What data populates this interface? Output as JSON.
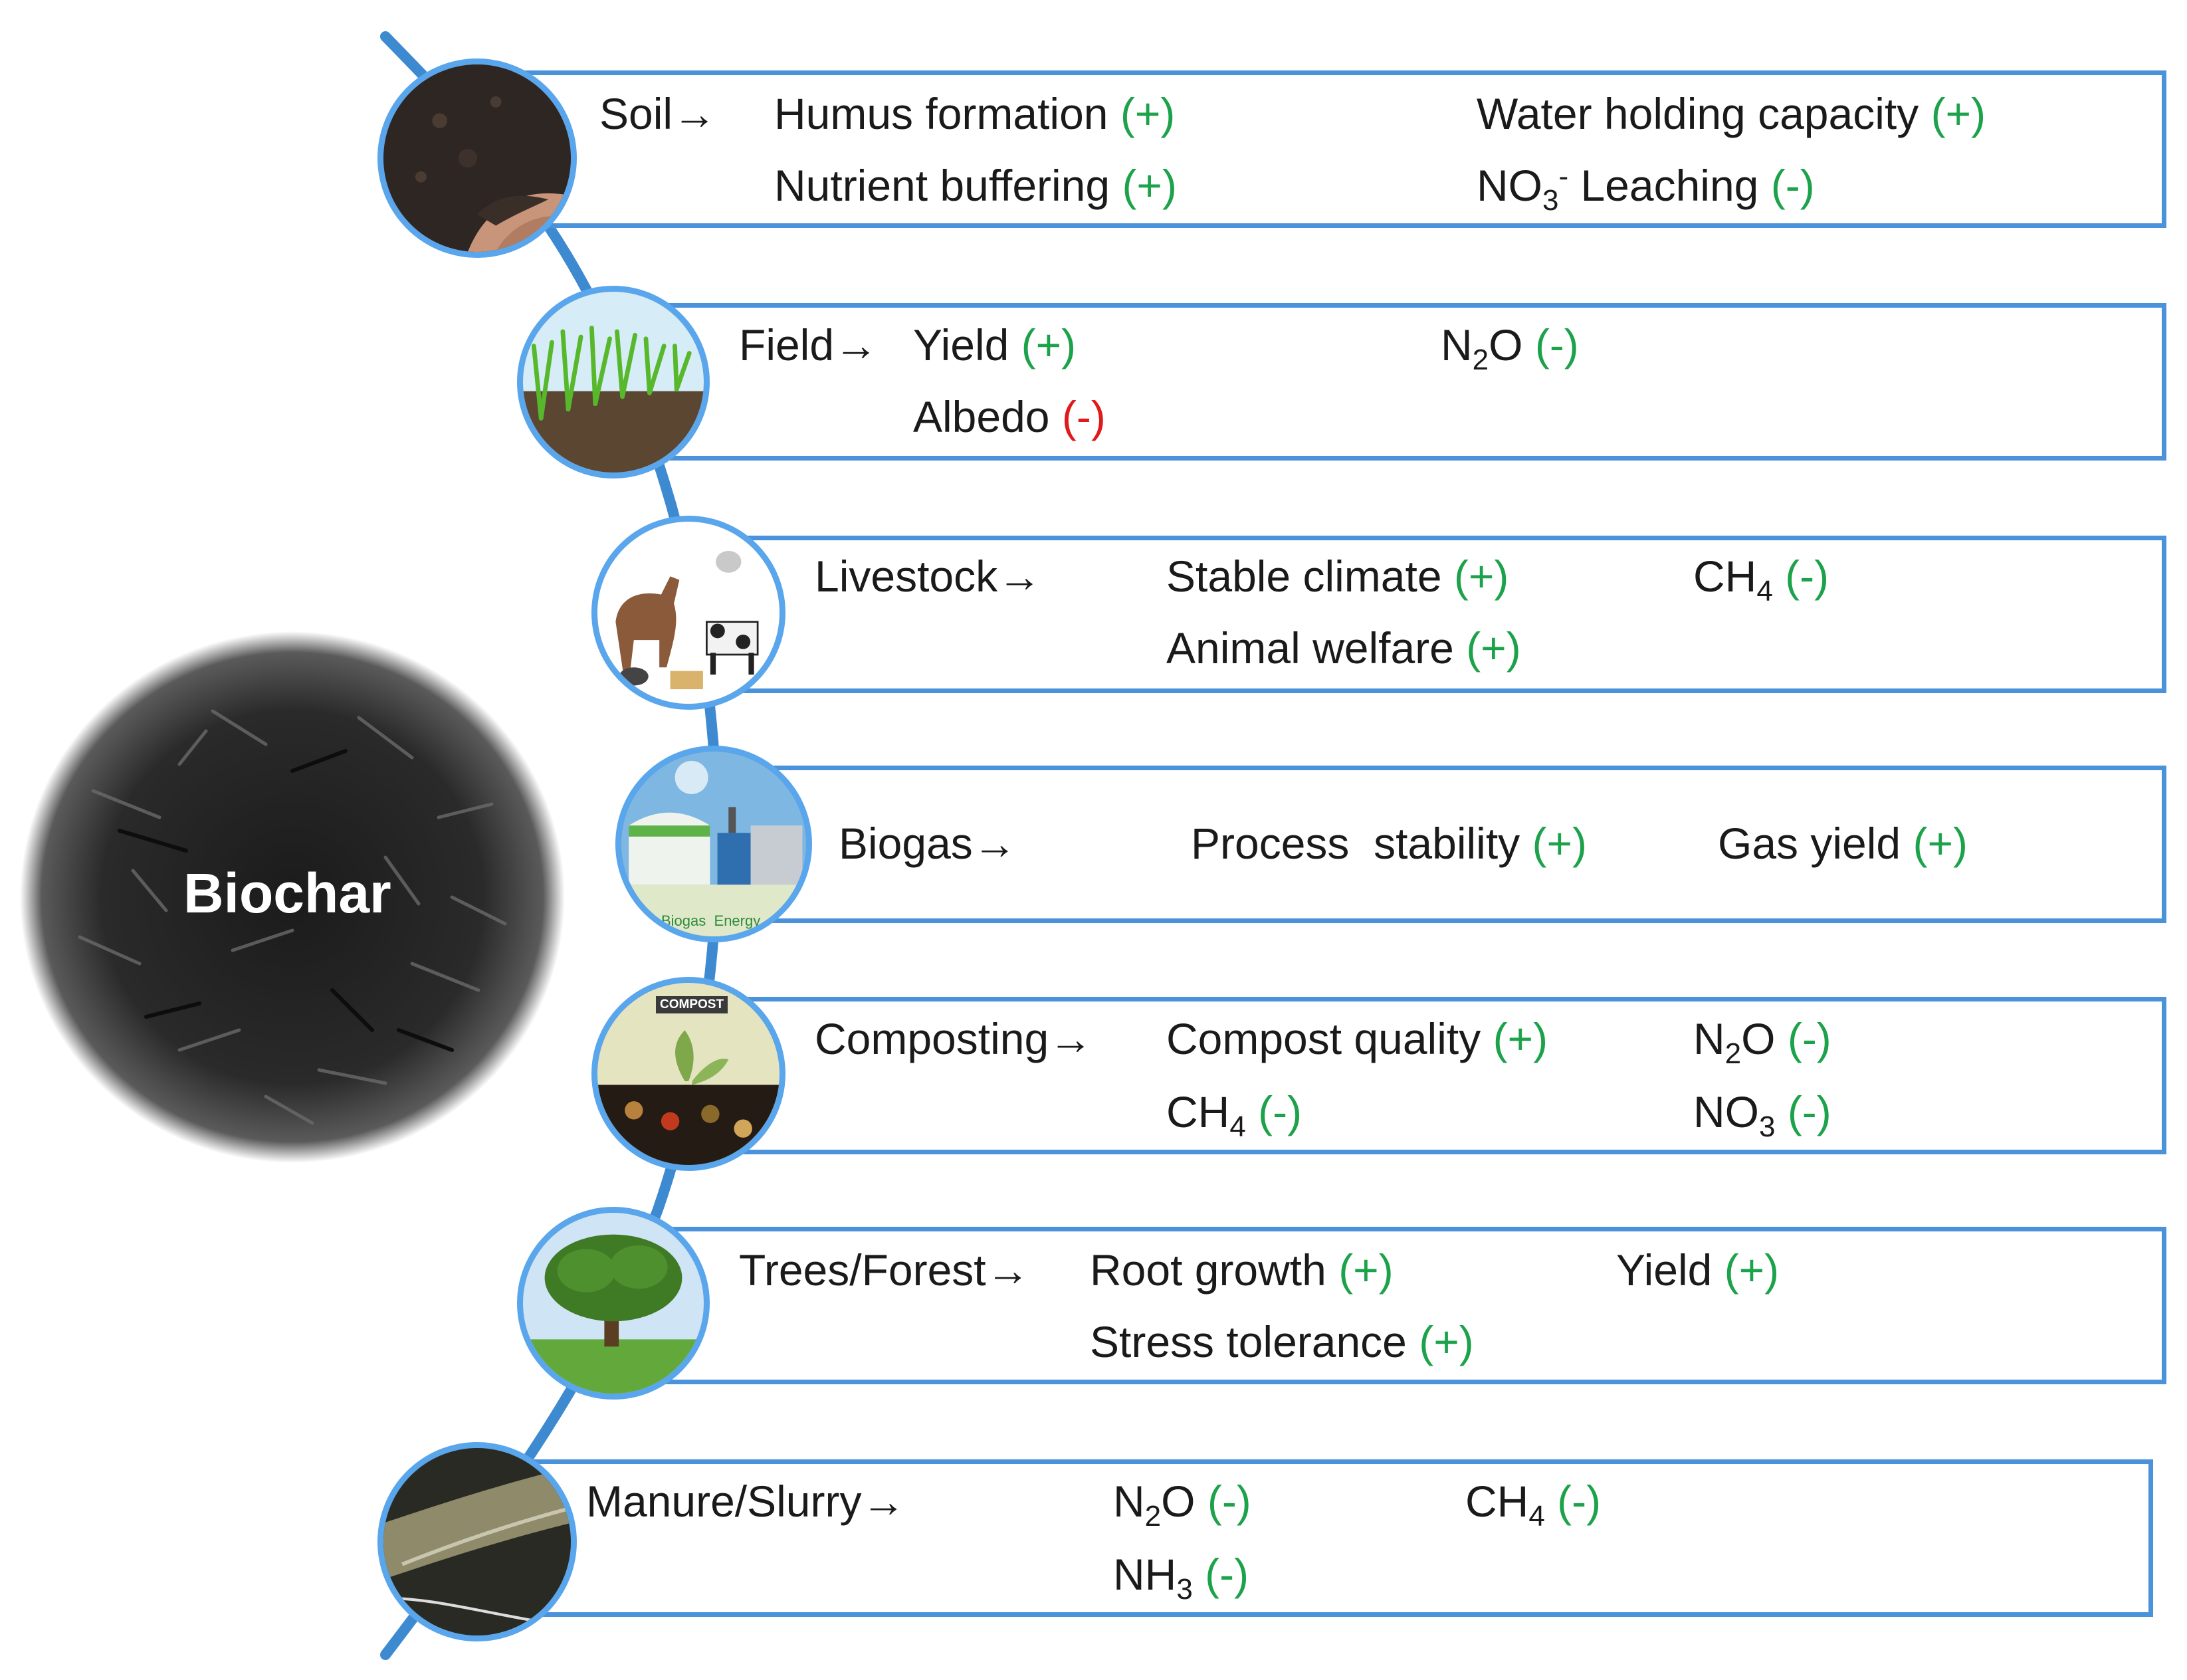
{
  "center_label": "Biochar",
  "colors": {
    "box_border": "#4a92d9",
    "positive": "#1ca24a",
    "negative_effect": "#1ca24a",
    "warning": "#e0191b",
    "spine": "#3d8ad0"
  },
  "rows": [
    {
      "id": "soil",
      "source": "Soil",
      "arrow": "→",
      "effects": [
        {
          "text": "Humus formation",
          "sign": "(+)"
        },
        {
          "text": "Water holding capacity",
          "sign": "(+)"
        },
        {
          "text": "Nutrient buffering",
          "sign": "(+)"
        },
        {
          "text_main": "NO",
          "sub": "3",
          "sup": "-",
          "text_after": " Leaching",
          "sign": "(-)"
        }
      ]
    },
    {
      "id": "field",
      "source": "Field",
      "arrow": "→",
      "effects": [
        {
          "text": "Yield",
          "sign": "(+)"
        },
        {
          "text_main": "N",
          "sub": "2",
          "text_after": "O",
          "sign": "(-)"
        },
        {
          "text": "Albedo",
          "sign": "(-)"
        }
      ]
    },
    {
      "id": "livestock",
      "source": "Livestock",
      "arrow": "→",
      "effects": [
        {
          "text": "Stable climate",
          "sign": "(+)"
        },
        {
          "text_main": "CH",
          "sub": "4",
          "sign": "(-)"
        },
        {
          "text": "Animal welfare",
          "sign": "(+)"
        }
      ]
    },
    {
      "id": "biogas",
      "source": "Biogas",
      "arrow": "→",
      "icon_text": [
        "Biogas",
        "Energy"
      ],
      "effects": [
        {
          "text": "Process  stability",
          "sign": "(+)"
        },
        {
          "text": "Gas yield",
          "sign": "(+)"
        }
      ]
    },
    {
      "id": "composting",
      "source": "Composting",
      "arrow": "→",
      "icon_text": [
        "COMPOST"
      ],
      "effects": [
        {
          "text": "Compost quality",
          "sign": "(+)"
        },
        {
          "text_main": "N",
          "sub": "2",
          "text_after": "O",
          "sign": "(-)"
        },
        {
          "text_main": "CH",
          "sub": "4",
          "sign": "(-)"
        },
        {
          "text_main": "NO",
          "sub": "3",
          "sign": "(-)"
        }
      ]
    },
    {
      "id": "trees",
      "source": "Trees/Forest",
      "arrow": "→",
      "effects": [
        {
          "text": "Root growth",
          "sign": "(+)"
        },
        {
          "text": "Yield",
          "sign": "(+)"
        },
        {
          "text": "Stress tolerance",
          "sign": "(+)"
        }
      ]
    },
    {
      "id": "manure",
      "source": "Manure/Slurry",
      "arrow": "→",
      "effects": [
        {
          "text_main": "N",
          "sub": "2",
          "text_after": "O",
          "sign": "(-)"
        },
        {
          "text_main": "CH",
          "sub": "4",
          "sign": "(-)"
        },
        {
          "text_main": "NH",
          "sub": "3",
          "sign": "(-)"
        }
      ]
    }
  ]
}
